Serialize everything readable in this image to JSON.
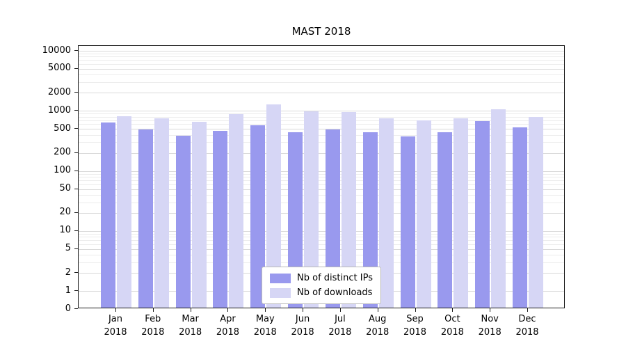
{
  "figure": {
    "title": "MAST 2018"
  },
  "chart_data": {
    "type": "bar",
    "title": "MAST 2018",
    "yscale": "symlog",
    "grid": true,
    "legend_position": "lower center",
    "ylim": [
      0,
      12000
    ],
    "y_ticks": [
      0,
      1,
      2,
      5,
      10,
      20,
      50,
      100,
      200,
      500,
      1000,
      2000,
      5000,
      10000
    ],
    "x_tick_months": [
      "Jan",
      "Feb",
      "Mar",
      "Apr",
      "May",
      "Jun",
      "Jul",
      "Aug",
      "Sep",
      "Oct",
      "Nov",
      "Dec"
    ],
    "x_tick_year": "2018",
    "categories": [
      "Jan 2018",
      "Feb 2018",
      "Mar 2018",
      "Apr 2018",
      "May 2018",
      "Jun 2018",
      "Jul 2018",
      "Aug 2018",
      "Sep 2018",
      "Oct 2018",
      "Nov 2018",
      "Dec 2018"
    ],
    "series": [
      {
        "name": "Nb of distinct IPs",
        "color": "#9999ee",
        "values": [
          600,
          460,
          370,
          440,
          540,
          420,
          460,
          420,
          360,
          420,
          640,
          510
        ]
      },
      {
        "name": "Nb of downloads",
        "color": "#d6d6f5",
        "values": [
          780,
          710,
          630,
          830,
          1200,
          940,
          900,
          710,
          660,
          710,
          1010,
          760
        ]
      }
    ]
  }
}
